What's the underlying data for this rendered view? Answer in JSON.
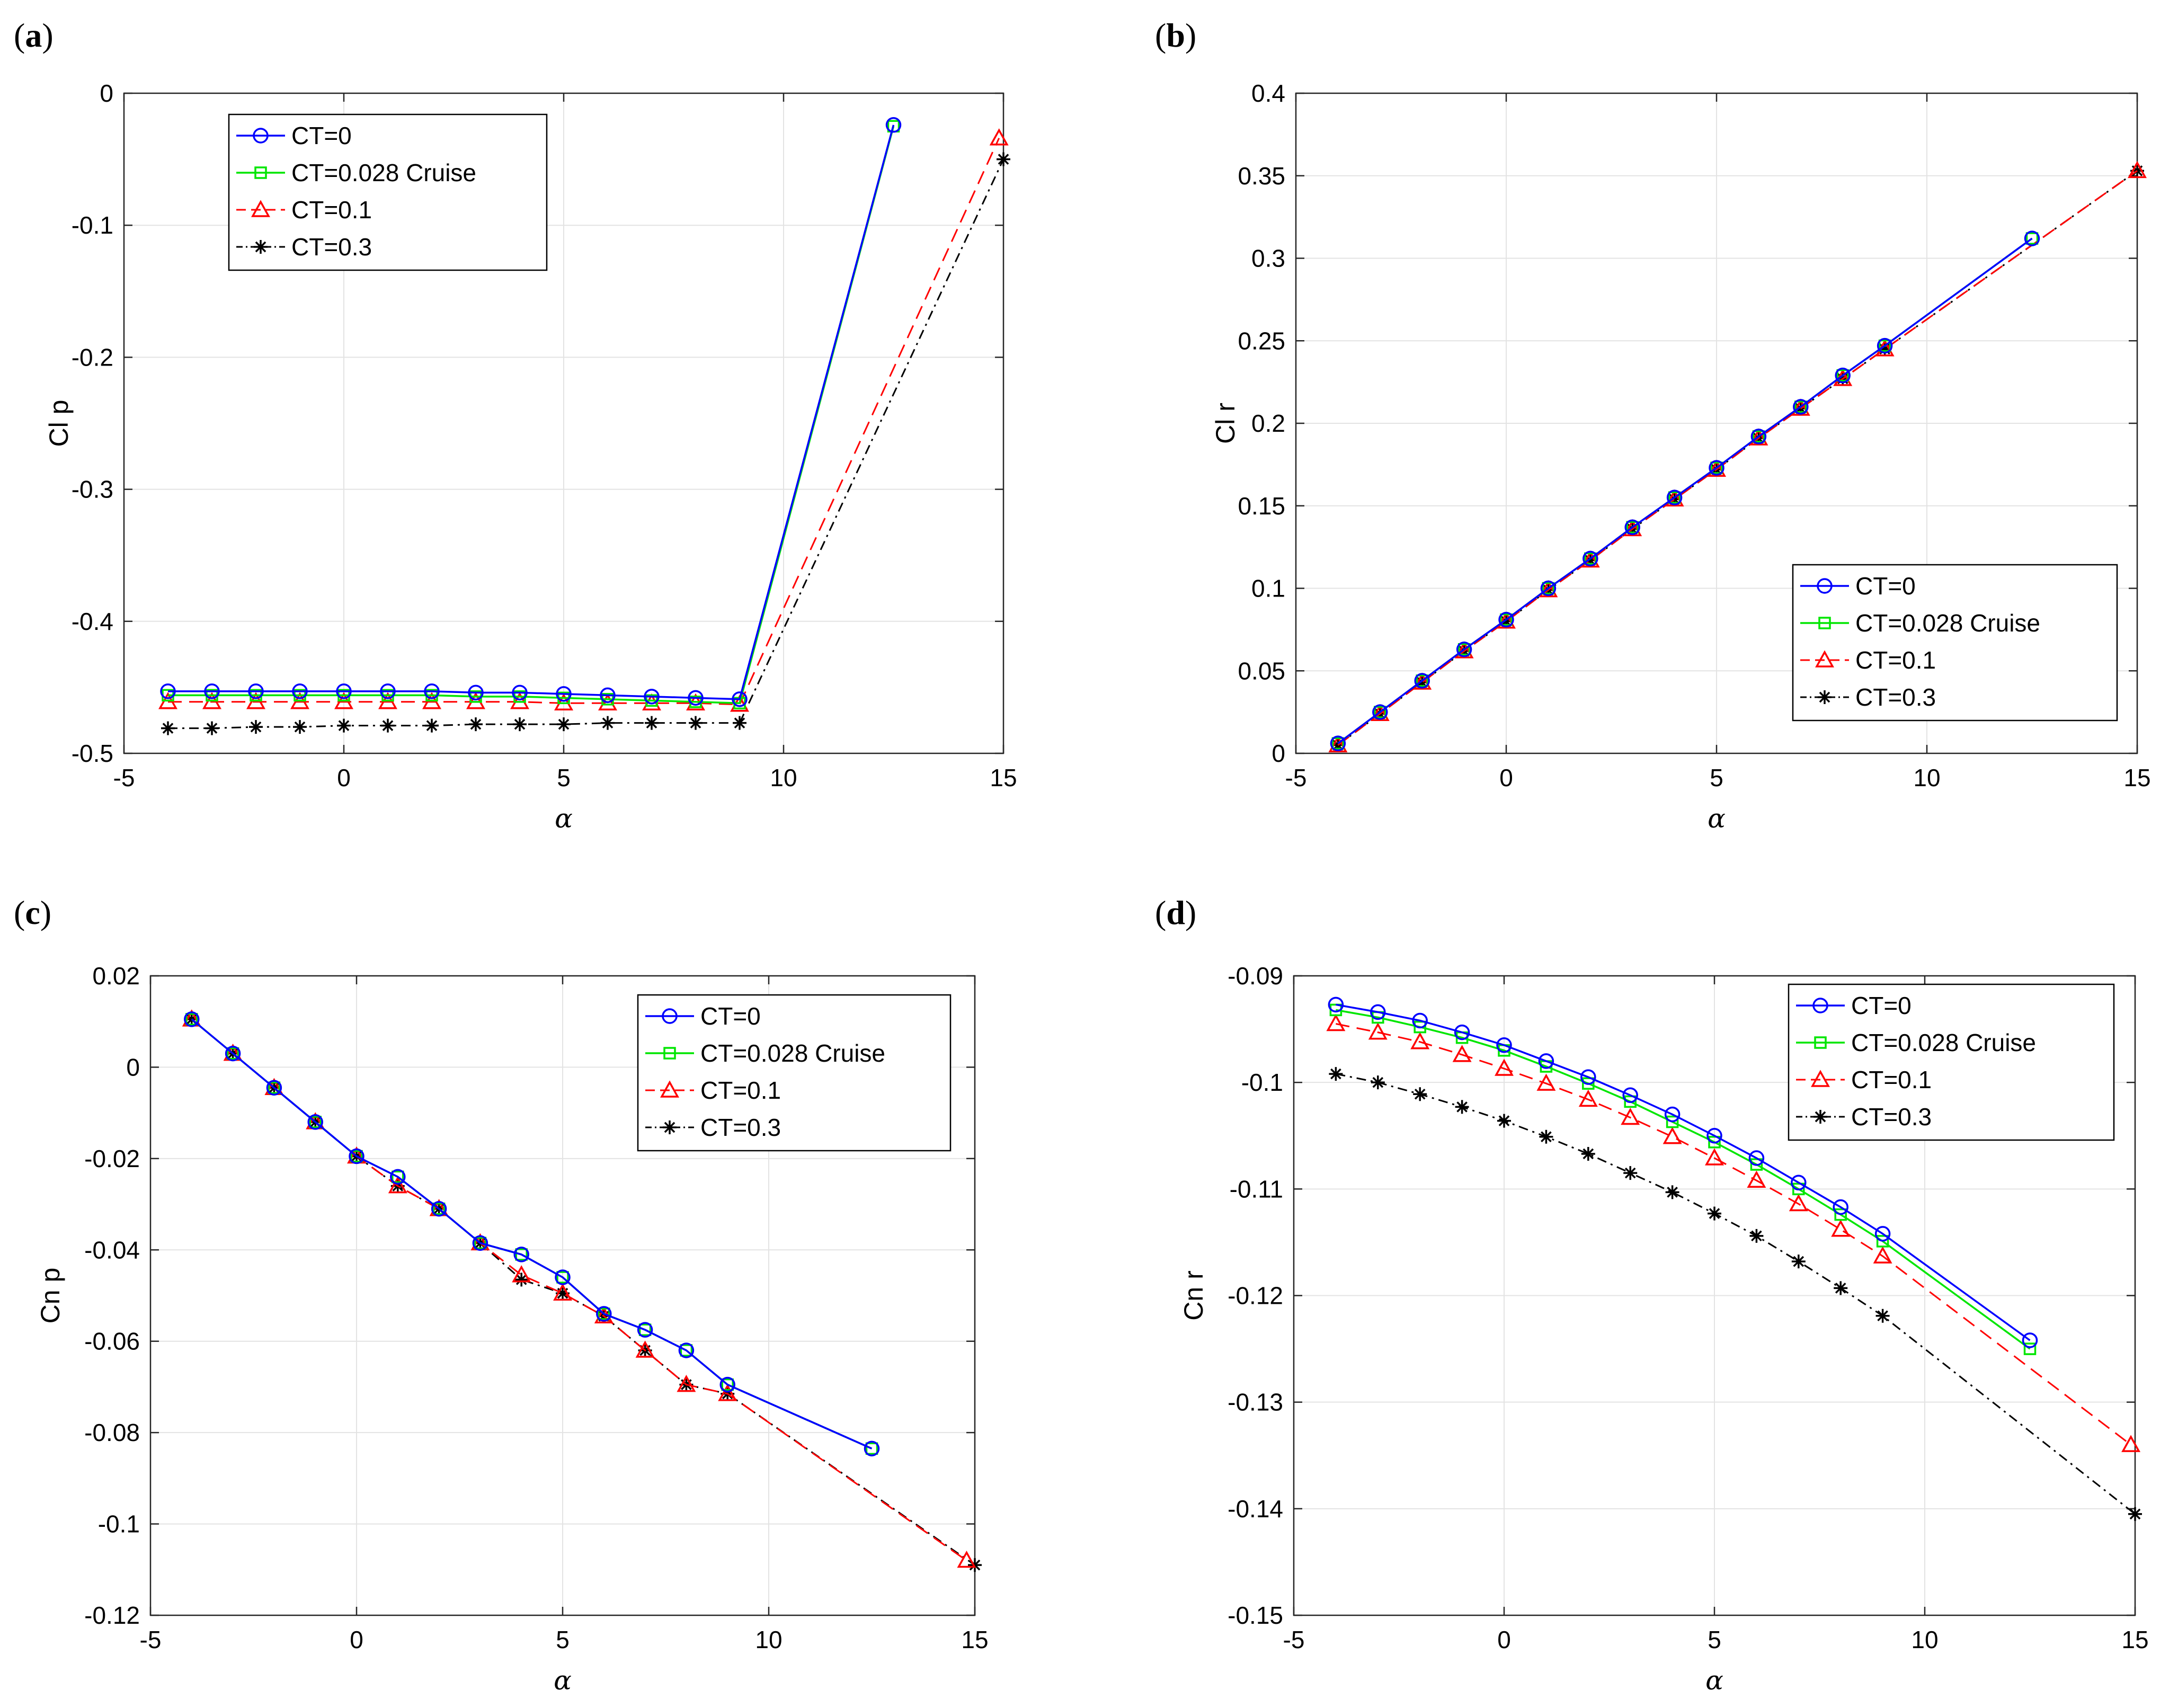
{
  "figure": {
    "panel_labels": [
      "(a)",
      "(b)",
      "(c)",
      "(d)"
    ]
  },
  "colors": {
    "ct0": "#0000FF",
    "ct028": "#00E600",
    "ct01": "#FF0000",
    "ct03": "#000000",
    "grid": "#E3E3E3",
    "axis": "#262626"
  },
  "legend_entries": [
    "CT=0",
    "CT=0.028  Cruise",
    "CT=0.1",
    "CT=0.3"
  ],
  "chart_data": [
    {
      "id": "a",
      "type": "line",
      "xlabel": "α",
      "ylabel": "Cl p",
      "xlim": [
        -5,
        15
      ],
      "ylim": [
        -0.5,
        0
      ],
      "xticks": [
        -5,
        0,
        5,
        10,
        15
      ],
      "yticks": [
        0,
        -0.1,
        -0.2,
        -0.3,
        -0.4,
        -0.5
      ],
      "x_tick_labels": [
        "-5",
        "0",
        "5",
        "10",
        "15"
      ],
      "y_tick_labels": [
        "0",
        "-0.1",
        "-0.2",
        "-0.3",
        "-0.4",
        "-0.5"
      ],
      "legend_position": "top-left",
      "series": [
        {
          "name": "CT=0",
          "x": [
            -4,
            -3,
            -2,
            -1,
            0,
            1,
            2,
            3,
            4,
            5,
            6,
            7,
            8,
            9,
            12.5
          ],
          "y": [
            -0.453,
            -0.453,
            -0.453,
            -0.453,
            -0.453,
            -0.453,
            -0.453,
            -0.454,
            -0.454,
            -0.455,
            -0.456,
            -0.457,
            -0.458,
            -0.459,
            -0.024
          ]
        },
        {
          "name": "CT=0.028  Cruise",
          "x": [
            -4,
            -3,
            -2,
            -1,
            0,
            1,
            2,
            3,
            4,
            5,
            6,
            7,
            8,
            9,
            12.5
          ],
          "y": [
            -0.456,
            -0.456,
            -0.456,
            -0.456,
            -0.456,
            -0.456,
            -0.456,
            -0.457,
            -0.457,
            -0.458,
            -0.459,
            -0.46,
            -0.461,
            -0.462,
            -0.025
          ]
        },
        {
          "name": "CT=0.1",
          "x": [
            -4,
            -3,
            -2,
            -1,
            0,
            1,
            2,
            3,
            4,
            5,
            6,
            7,
            8,
            9,
            14.9
          ],
          "y": [
            -0.461,
            -0.461,
            -0.461,
            -0.461,
            -0.461,
            -0.461,
            -0.461,
            -0.461,
            -0.461,
            -0.462,
            -0.462,
            -0.462,
            -0.462,
            -0.463,
            -0.034
          ]
        },
        {
          "name": "CT=0.3",
          "x": [
            -4,
            -3,
            -2,
            -1,
            0,
            1,
            2,
            3,
            4,
            5,
            6,
            7,
            8,
            9,
            15
          ],
          "y": [
            -0.481,
            -0.481,
            -0.48,
            -0.48,
            -0.479,
            -0.479,
            -0.479,
            -0.478,
            -0.478,
            -0.478,
            -0.477,
            -0.477,
            -0.477,
            -0.477,
            -0.05
          ]
        }
      ]
    },
    {
      "id": "b",
      "type": "line",
      "xlabel": "α",
      "ylabel": "Cl r",
      "xlim": [
        -5,
        15
      ],
      "ylim": [
        0,
        0.4
      ],
      "xticks": [
        -5,
        0,
        5,
        10,
        15
      ],
      "yticks": [
        0,
        0.05,
        0.1,
        0.15,
        0.2,
        0.25,
        0.3,
        0.35,
        0.4
      ],
      "x_tick_labels": [
        "-5",
        "0",
        "5",
        "10",
        "15"
      ],
      "y_tick_labels": [
        "0",
        "0.05",
        "0.1",
        "0.15",
        "0.2",
        "0.25",
        "0.3",
        "0.35",
        "0.4"
      ],
      "legend_position": "bottom-right",
      "series": [
        {
          "name": "CT=0",
          "x": [
            -4,
            -3,
            -2,
            -1,
            0,
            1,
            2,
            3,
            4,
            5,
            6,
            7,
            8,
            9,
            12.5
          ],
          "y": [
            0.006,
            0.025,
            0.044,
            0.063,
            0.081,
            0.1,
            0.118,
            0.137,
            0.155,
            0.173,
            0.192,
            0.21,
            0.229,
            0.247,
            0.312
          ]
        },
        {
          "name": "CT=0.028  Cruise",
          "x": [
            -4,
            -3,
            -2,
            -1,
            0,
            1,
            2,
            3,
            4,
            5,
            6,
            7,
            8,
            9,
            12.5
          ],
          "y": [
            0.006,
            0.025,
            0.044,
            0.063,
            0.081,
            0.1,
            0.118,
            0.137,
            0.155,
            0.173,
            0.192,
            0.21,
            0.229,
            0.247,
            0.312
          ]
        },
        {
          "name": "CT=0.1",
          "x": [
            -4,
            -3,
            -2,
            -1,
            0,
            1,
            2,
            3,
            4,
            5,
            6,
            7,
            8,
            9,
            15
          ],
          "y": [
            0.005,
            0.024,
            0.043,
            0.062,
            0.08,
            0.099,
            0.117,
            0.136,
            0.154,
            0.172,
            0.191,
            0.209,
            0.227,
            0.245,
            0.353
          ]
        },
        {
          "name": "CT=0.3",
          "x": [
            -4,
            -3,
            -2,
            -1,
            0,
            1,
            2,
            3,
            4,
            5,
            6,
            7,
            8,
            9,
            15
          ],
          "y": [
            0.005,
            0.024,
            0.043,
            0.062,
            0.08,
            0.099,
            0.117,
            0.136,
            0.154,
            0.172,
            0.191,
            0.209,
            0.227,
            0.245,
            0.353
          ]
        }
      ]
    },
    {
      "id": "c",
      "type": "line",
      "xlabel": "α",
      "ylabel": "Cn p",
      "xlim": [
        -5,
        15
      ],
      "ylim": [
        -0.12,
        0.02
      ],
      "xticks": [
        -5,
        0,
        5,
        10,
        15
      ],
      "yticks": [
        0.02,
        0,
        -0.02,
        -0.04,
        -0.06,
        -0.08,
        -0.1,
        -0.12
      ],
      "x_tick_labels": [
        "-5",
        "0",
        "5",
        "10",
        "15"
      ],
      "y_tick_labels": [
        "0.02",
        "0",
        "-0.02",
        "-0.04",
        "-0.06",
        "-0.08",
        "-0.1",
        "-0.12"
      ],
      "legend_position": "top-right",
      "series": [
        {
          "name": "CT=0",
          "x": [
            -4,
            -3,
            -2,
            -1,
            0,
            1,
            2,
            3,
            4,
            5,
            6,
            7,
            8,
            9,
            12.5
          ],
          "y": [
            0.0105,
            0.003,
            -0.0045,
            -0.012,
            -0.0195,
            -0.024,
            -0.031,
            -0.0385,
            -0.041,
            -0.046,
            -0.054,
            -0.0575,
            -0.062,
            -0.0695,
            -0.0835
          ]
        },
        {
          "name": "CT=0.028  Cruise",
          "x": [
            -4,
            -3,
            -2,
            -1,
            0,
            1,
            2,
            3,
            4,
            5,
            6,
            7,
            8,
            9,
            12.5
          ],
          "y": [
            0.0105,
            0.003,
            -0.0045,
            -0.012,
            -0.0195,
            -0.024,
            -0.031,
            -0.0385,
            -0.041,
            -0.046,
            -0.054,
            -0.0575,
            -0.062,
            -0.0695,
            -0.0835
          ]
        },
        {
          "name": "CT=0.1",
          "x": [
            -4,
            -3,
            -2,
            -1,
            0,
            1,
            2,
            3,
            4,
            5,
            6,
            7,
            8,
            9,
            14.8
          ],
          "y": [
            0.0105,
            0.003,
            -0.0045,
            -0.012,
            -0.0195,
            -0.026,
            -0.031,
            -0.0385,
            -0.0455,
            -0.0495,
            -0.0545,
            -0.062,
            -0.0695,
            -0.0715,
            -0.108
          ]
        },
        {
          "name": "CT=0.3",
          "x": [
            -4,
            -3,
            -2,
            -1,
            0,
            1,
            2,
            3,
            4,
            5,
            6,
            7,
            8,
            9,
            15
          ],
          "y": [
            0.0105,
            0.003,
            -0.0045,
            -0.012,
            -0.0195,
            -0.026,
            -0.031,
            -0.0385,
            -0.0465,
            -0.0495,
            -0.0545,
            -0.062,
            -0.0695,
            -0.0715,
            -0.109
          ]
        }
      ]
    },
    {
      "id": "d",
      "type": "line",
      "xlabel": "α",
      "ylabel": "Cn r",
      "xlim": [
        -5,
        15
      ],
      "ylim": [
        -0.15,
        -0.09
      ],
      "xticks": [
        -5,
        0,
        5,
        10,
        15
      ],
      "yticks": [
        -0.09,
        -0.1,
        -0.11,
        -0.12,
        -0.13,
        -0.14,
        -0.15
      ],
      "x_tick_labels": [
        "-5",
        "0",
        "5",
        "10",
        "15"
      ],
      "y_tick_labels": [
        "-0.09",
        "-0.1",
        "-0.11",
        "-0.12",
        "-0.13",
        "-0.14",
        "-0.15"
      ],
      "legend_position": "top-right",
      "series": [
        {
          "name": "CT=0",
          "x": [
            -4,
            -3,
            -2,
            -1,
            0,
            1,
            2,
            3,
            4,
            5,
            6,
            7,
            8,
            9,
            12.5
          ],
          "y": [
            -0.0927,
            -0.0934,
            -0.0942,
            -0.0953,
            -0.0965,
            -0.098,
            -0.0995,
            -0.1012,
            -0.103,
            -0.105,
            -0.1071,
            -0.1094,
            -0.1117,
            -0.1142,
            -0.1242
          ]
        },
        {
          "name": "CT=0.028  Cruise",
          "x": [
            -4,
            -3,
            -2,
            -1,
            0,
            1,
            2,
            3,
            4,
            5,
            6,
            7,
            8,
            9,
            12.5
          ],
          "y": [
            -0.0932,
            -0.0939,
            -0.0948,
            -0.0958,
            -0.097,
            -0.0985,
            -0.1001,
            -0.1018,
            -0.1037,
            -0.1056,
            -0.1077,
            -0.11,
            -0.1124,
            -0.1149,
            -0.125
          ]
        },
        {
          "name": "CT=0.1",
          "x": [
            -4,
            -3,
            -2,
            -1,
            0,
            1,
            2,
            3,
            4,
            5,
            6,
            7,
            8,
            9,
            14.9
          ],
          "y": [
            -0.0945,
            -0.0953,
            -0.0962,
            -0.0974,
            -0.0987,
            -0.1001,
            -0.1016,
            -0.1033,
            -0.1051,
            -0.1071,
            -0.1092,
            -0.1114,
            -0.1138,
            -0.1163,
            -0.134
          ]
        },
        {
          "name": "CT=0.3",
          "x": [
            -4,
            -3,
            -2,
            -1,
            0,
            1,
            2,
            3,
            4,
            5,
            6,
            7,
            8,
            9,
            15
          ],
          "y": [
            -0.0992,
            -0.1,
            -0.1011,
            -0.1023,
            -0.1036,
            -0.1051,
            -0.1067,
            -0.1085,
            -0.1103,
            -0.1123,
            -0.1144,
            -0.1168,
            -0.1193,
            -0.1219,
            -0.1405
          ]
        }
      ]
    }
  ]
}
